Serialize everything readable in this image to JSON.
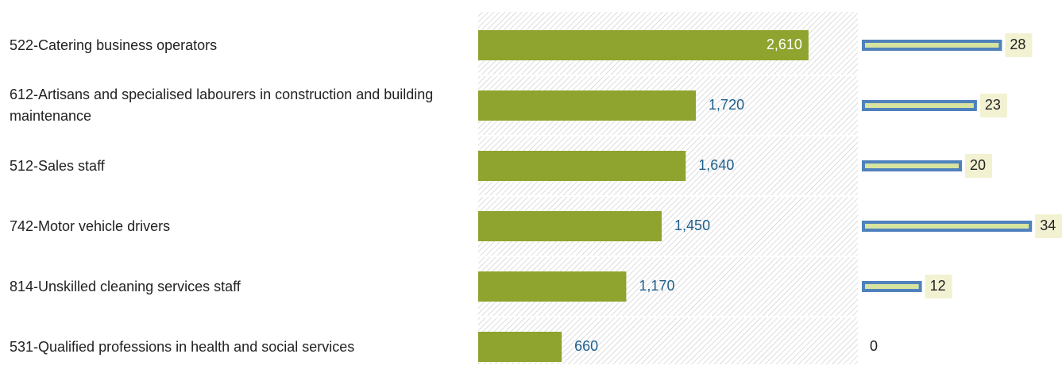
{
  "chart_data": [
    {
      "type": "bar",
      "orientation": "horizontal",
      "categories": [
        "522-Catering business operators",
        "612-Artisans and specialised labourers in construction and building maintenance",
        "512-Sales staff",
        "742-Motor vehicle drivers",
        "814-Unskilled cleaning services staff",
        "531-Qualified professions in health and social services"
      ],
      "values": [
        2610,
        1720,
        1640,
        1450,
        1170,
        660
      ],
      "value_labels": [
        "2,610",
        "1,720",
        "1,640",
        "1,450",
        "1,170",
        "660"
      ],
      "color": "#8ea42e",
      "xlim": [
        0,
        3000
      ]
    },
    {
      "type": "bar",
      "orientation": "horizontal",
      "values": [
        28,
        23,
        20,
        34,
        12,
        0
      ],
      "color": "#d7e4a0",
      "edgecolor": "#4f81bd",
      "xlim": [
        0,
        40
      ]
    }
  ]
}
